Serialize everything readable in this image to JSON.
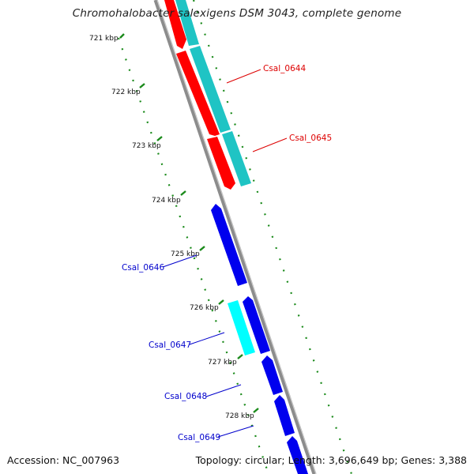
{
  "title": "Chromohalobacter salexigens DSM 3043, complete genome",
  "footer": {
    "accession": "Accession: NC_007963",
    "summary": "Topology: circular; Length: 3,696,649 bp; Genes: 3,388"
  },
  "colors": {
    "forward_cds": "#ff0000",
    "forward_similar": "#1fc4c4",
    "reverse_cds": "#0000ee",
    "reverse_similar": "#00ffff",
    "backbone": "#8c8c8c",
    "kbp_ticks": "#1a8a1a",
    "label_forward": "#dd0000",
    "label_reverse": "#0000cc"
  },
  "kbp_labels": [
    "721 kbp",
    "722 kbp",
    "723 kbp",
    "724 kbp",
    "725 kbp",
    "726 kbp",
    "727 kbp",
    "728 kbp"
  ],
  "gene_labels": [
    {
      "text": "Csal_0644",
      "strand": "forward"
    },
    {
      "text": "Csal_0645",
      "strand": "forward"
    },
    {
      "text": "Csal_0646",
      "strand": "reverse"
    },
    {
      "text": "Csal_0647",
      "strand": "reverse"
    },
    {
      "text": "Csal_0648",
      "strand": "reverse"
    },
    {
      "text": "Csal_0649",
      "strand": "reverse"
    }
  ]
}
